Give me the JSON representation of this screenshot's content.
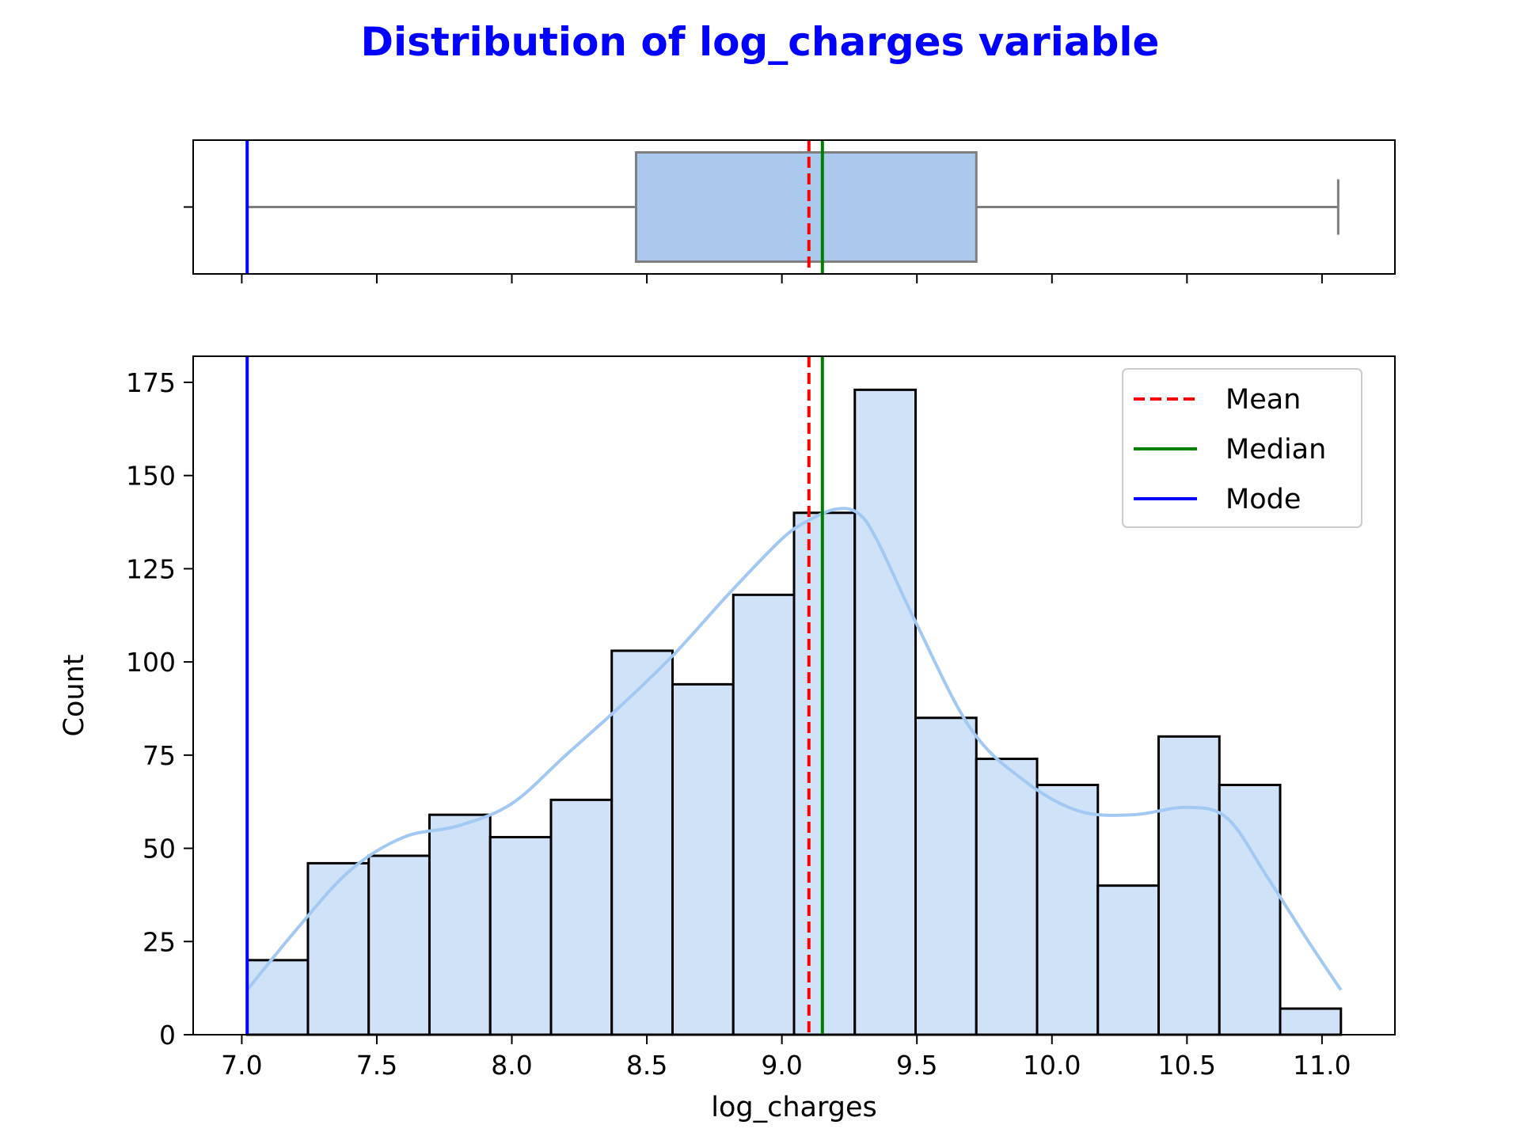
{
  "figure": {
    "title": "Distribution of log_charges variable",
    "title_color": "#0000ff"
  },
  "chart_data": [
    {
      "type": "box",
      "orientation": "horizontal",
      "whisker_low": 7.02,
      "q1": 8.46,
      "median": 9.15,
      "q3": 9.72,
      "whisker_high": 11.06,
      "box_fill": "#abc9ec",
      "box_edge": "#7f7f7f",
      "mean": 9.1,
      "mode": 7.02,
      "xlim": [
        6.82,
        11.27
      ],
      "show_xtick_labels": false
    },
    {
      "type": "histogram",
      "xlabel": "log_charges",
      "ylabel": "Count",
      "xlim": [
        6.82,
        11.27
      ],
      "ylim": [
        0,
        182
      ],
      "xticks": [
        "7.0",
        "7.5",
        "8.0",
        "8.5",
        "9.0",
        "9.5",
        "10.0",
        "10.5",
        "11.0"
      ],
      "yticks": [
        "0",
        "25",
        "50",
        "75",
        "100",
        "125",
        "150",
        "175"
      ],
      "bin_edges": [
        7.02,
        7.245,
        7.47,
        7.695,
        7.92,
        8.145,
        8.37,
        8.595,
        8.82,
        9.045,
        9.27,
        9.495,
        9.72,
        9.945,
        10.17,
        10.395,
        10.62,
        10.845,
        11.07
      ],
      "counts": [
        20,
        46,
        48,
        59,
        53,
        63,
        103,
        94,
        118,
        140,
        173,
        85,
        74,
        67,
        40,
        80,
        67,
        7
      ],
      "bar_fill": "#cfe2f7",
      "bar_edge": "#000000",
      "kde": {
        "color": "#a1c9f4",
        "x": [
          7.02,
          7.2,
          7.4,
          7.6,
          7.8,
          8.0,
          8.2,
          8.4,
          8.6,
          8.8,
          9.0,
          9.1,
          9.2,
          9.28,
          9.35,
          9.5,
          9.7,
          9.9,
          10.1,
          10.3,
          10.5,
          10.65,
          10.8,
          10.95,
          11.07
        ],
        "y": [
          12,
          28,
          44,
          53,
          56,
          62,
          75,
          88,
          102,
          118,
          133,
          138,
          141,
          140,
          133,
          110,
          82,
          68,
          60,
          59,
          61,
          58,
          42,
          25,
          12
        ]
      },
      "reference_lines": [
        {
          "label": "Mean",
          "value": 9.1,
          "color": "#ff0000",
          "style": "dashed"
        },
        {
          "label": "Median",
          "value": 9.15,
          "color": "#008000",
          "style": "solid"
        },
        {
          "label": "Mode",
          "value": 7.02,
          "color": "#0000ff",
          "style": "solid"
        }
      ],
      "legend": {
        "position": "upper right",
        "entries": [
          "Mean",
          "Median",
          "Mode"
        ]
      }
    }
  ]
}
